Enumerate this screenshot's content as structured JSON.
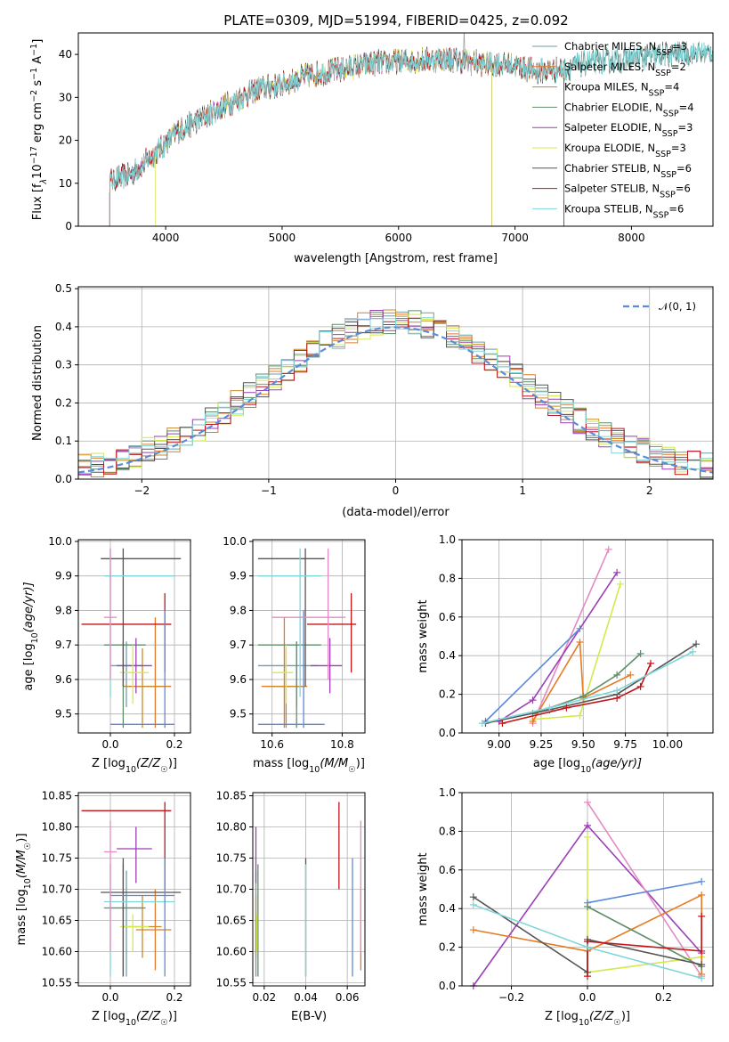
{
  "figure": {
    "title": "PLATE=0309, MJD=51994, FIBERID=0425, z=0.092"
  },
  "colors": {
    "chabrier_miles": "#6f9ea6",
    "salpeter_miles": "#e07b2e",
    "kroupa_miles": "#c88a2a",
    "chabrier_elodie": "#5f8f6a",
    "salpeter_elodie": "#9b3fb5",
    "kroupa_elodie": "#d4ea4a",
    "chabrier_stelib": "#555555",
    "salpeter_stelib": "#c0161b",
    "kroupa_stelib": "#7fd6d8",
    "extra_blue": "#5b8bd9",
    "extra_pink": "#e58ac2",
    "extra_orange": "#e57b22"
  },
  "chart_data": [
    {
      "id": "spectrum",
      "type": "line",
      "title": "PLATE=0309, MJD=51994, FIBERID=0425, z=0.092",
      "xlabel": "wavelength [Angstrom, rest frame]",
      "ylabel_main": "Flux [f",
      "ylabel_sub": "λ",
      "ylabel_rest": "10",
      "ylabel_exp": "−17",
      "ylabel_units": " erg cm",
      "ylabel_exp2": "−2",
      "ylabel_units2": " s",
      "ylabel_exp3": "−1",
      "ylabel_units3": " A",
      "ylabel_exp4": "−1",
      "ylabel_end": "]",
      "xlim": [
        3250,
        8700
      ],
      "ylim": [
        0,
        45
      ],
      "xticks": [
        4000,
        5000,
        6000,
        7000,
        8000
      ],
      "yticks": [
        0,
        10,
        20,
        30,
        40
      ],
      "continuum": [
        [
          3500,
          10.5
        ],
        [
          3700,
          12
        ],
        [
          3950,
          18
        ],
        [
          4100,
          22
        ],
        [
          4300,
          25
        ],
        [
          4500,
          28
        ],
        [
          4800,
          32
        ],
        [
          5000,
          33
        ],
        [
          5200,
          35
        ],
        [
          5500,
          36.5
        ],
        [
          5800,
          38
        ],
        [
          6100,
          38.5
        ],
        [
          6400,
          39
        ],
        [
          6700,
          38
        ],
        [
          7000,
          37.5
        ],
        [
          7200,
          36
        ],
        [
          7400,
          36.5
        ],
        [
          7600,
          38
        ],
        [
          8000,
          39
        ],
        [
          8300,
          40
        ],
        [
          8700,
          40.5
        ]
      ],
      "legend": [
        {
          "name": "Chabrier MILES, N",
          "sub": "SSP",
          "tail": "=3",
          "color_key": "chabrier_miles"
        },
        {
          "name": "Salpeter MILES, N",
          "sub": "SSP",
          "tail": "=2",
          "color_key": "salpeter_miles"
        },
        {
          "name": "Kroupa MILES, N",
          "sub": "SSP",
          "tail": "=4",
          "color_key": "kroupa_miles"
        },
        {
          "name": "Chabrier ELODIE, N",
          "sub": "SSP",
          "tail": "=4",
          "color_key": "chabrier_elodie"
        },
        {
          "name": "Salpeter ELODIE, N",
          "sub": "SSP",
          "tail": "=3",
          "color_key": "salpeter_elodie"
        },
        {
          "name": "Kroupa ELODIE, N",
          "sub": "SSP",
          "tail": "=3",
          "color_key": "kroupa_elodie"
        },
        {
          "name": "Chabrier STELIB, N",
          "sub": "SSP",
          "tail": "=6",
          "color_key": "chabrier_stelib"
        },
        {
          "name": "Salpeter STELIB, N",
          "sub": "SSP",
          "tail": "=6",
          "color_key": "salpeter_stelib"
        },
        {
          "name": "Kroupa STELIB, N",
          "sub": "SSP",
          "tail": "=6",
          "color_key": "kroupa_stelib"
        }
      ]
    },
    {
      "id": "residuals",
      "type": "line",
      "xlabel": "(data-model)/error",
      "ylabel": "Normed distribution",
      "xlim": [
        -2.5,
        2.5
      ],
      "ylim": [
        0,
        0.505
      ],
      "xticks": [
        -2,
        -1,
        0,
        1,
        2
      ],
      "yticks": [
        0.0,
        0.1,
        0.2,
        0.3,
        0.4,
        0.5
      ],
      "grid": true,
      "legend_text": "𝒩(0, 1)"
    },
    {
      "id": "age_vs_Z",
      "type": "scatter",
      "xlabel": "Z [log",
      "xlabel_sub": "10",
      "xlabel_rest": "(Z/Z",
      "xlabel_sun": "☉",
      "xlabel_end": ")]",
      "ylabel": "age  [log",
      "ylabel_sub": "10",
      "ylabel_rest": "(age/yr)]",
      "xlim": [
        -0.1,
        0.25
      ],
      "ylim": [
        9.445,
        10.005
      ],
      "xticks": [
        "0.0",
        "0.2"
      ],
      "yticks": [
        "9.5",
        "9.6",
        "9.7",
        "9.8",
        "9.9",
        "10.0"
      ]
    },
    {
      "id": "age_vs_mass",
      "type": "scatter",
      "xlabel": "mass [log",
      "xlabel_sub": "10",
      "xlabel_rest": "(M/M",
      "xlabel_sun": "☉",
      "xlabel_end": ")]",
      "xlim": [
        10.545,
        10.865
      ],
      "ylim": [
        9.445,
        10.005
      ],
      "xticks": [
        "10.6",
        "10.8"
      ],
      "yticks": [
        "9.5",
        "9.6",
        "9.7",
        "9.8",
        "9.9",
        "10.0"
      ]
    },
    {
      "id": "weight_vs_age",
      "type": "line",
      "xlabel": "age  [log",
      "xlabel_sub": "10",
      "xlabel_rest": "(age/yr)]",
      "ylabel": "mass weight",
      "xlim": [
        8.78,
        10.27
      ],
      "ylim": [
        0,
        1.0
      ],
      "xticks": [
        "9.00",
        "9.25",
        "9.50",
        "9.75",
        "10.00"
      ],
      "yticks": [
        "0.0",
        "0.2",
        "0.4",
        "0.6",
        "0.8",
        "1.0"
      ],
      "grid": true
    },
    {
      "id": "mass_vs_Z",
      "type": "scatter",
      "xlabel": "Z [log",
      "xlabel_sub": "10",
      "xlabel_rest": "(Z/Z",
      "xlabel_sun": "☉",
      "xlabel_end": ")]",
      "ylabel": "mass [log",
      "ylabel_sub": "10",
      "ylabel_rest": "(M/M",
      "ylabel_sun": "☉",
      "ylabel_end": ")]",
      "xlim": [
        -0.1,
        0.25
      ],
      "ylim": [
        10.545,
        10.855
      ],
      "xticks": [
        "0.0",
        "0.2"
      ],
      "yticks": [
        "10.55",
        "10.60",
        "10.65",
        "10.70",
        "10.75",
        "10.80",
        "10.85"
      ]
    },
    {
      "id": "mass_vs_EBV",
      "type": "scatter",
      "xlabel": "E(B-V)",
      "xlim": [
        0.0145,
        0.0685
      ],
      "ylim": [
        10.545,
        10.855
      ],
      "xticks": [
        "0.02",
        "0.04",
        "0.06"
      ],
      "yticks": [
        "10.55",
        "10.60",
        "10.65",
        "10.70",
        "10.75",
        "10.80",
        "10.85"
      ]
    },
    {
      "id": "weight_vs_Z",
      "type": "line",
      "xlabel": "Z [log",
      "xlabel_sub": "10",
      "xlabel_rest": "(Z/Z",
      "xlabel_sun": "☉",
      "xlabel_end": ")]",
      "ylabel": "mass weight",
      "xlim": [
        -0.33,
        0.33
      ],
      "ylim": [
        0,
        1.0
      ],
      "xticks": [
        "−0.2",
        "0.0",
        "0.2"
      ],
      "xtick_values": [
        -0.2,
        0.0,
        0.2
      ],
      "yticks": [
        "0.0",
        "0.2",
        "0.4",
        "0.6",
        "0.8",
        "1.0"
      ],
      "grid": true
    }
  ]
}
